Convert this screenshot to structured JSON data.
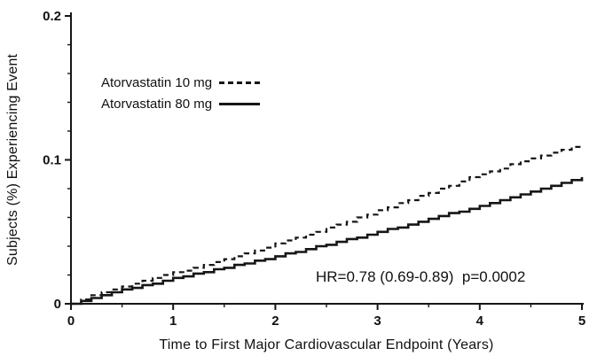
{
  "figure": {
    "background": "#ffffff",
    "ink_color": "#161616"
  },
  "chart_data": {
    "type": "line",
    "title": "",
    "xlabel": "Time to First Major Cardiovascular Endpoint (Years)",
    "ylabel": "Subjects (%) Experiencing Event",
    "xlim": [
      0,
      5
    ],
    "ylim": [
      0,
      0.2
    ],
    "grid": false,
    "legend_position": "upper-left-inside",
    "x_ticks": [
      0,
      1,
      2,
      3,
      4,
      5
    ],
    "x_tick_labels": [
      "0",
      "1",
      "2",
      "3",
      "4",
      "5"
    ],
    "x_minor_ticks": [
      0.5,
      1.5,
      2.5,
      3.5,
      4.5
    ],
    "y_ticks": [
      0,
      0.1,
      0.2
    ],
    "y_tick_labels": [
      "0",
      "0.1",
      "0.2"
    ],
    "y_minor_ticks": [
      0.02,
      0.04,
      0.06,
      0.08,
      0.12,
      0.14,
      0.16,
      0.18
    ],
    "annotation": "HR=0.78 (0.69-0.89)  p=0.0002",
    "legend": [
      {
        "label": "Atorvastatin 10 mg",
        "style": "dashed"
      },
      {
        "label": "Atorvastatin 80 mg",
        "style": "solid"
      }
    ],
    "x": [
      0,
      0.1,
      0.2,
      0.3,
      0.4,
      0.5,
      0.6,
      0.7,
      0.8,
      0.9,
      1,
      1.1,
      1.2,
      1.3,
      1.4,
      1.5,
      1.6,
      1.7,
      1.8,
      1.9,
      2,
      2.1,
      2.2,
      2.3,
      2.4,
      2.5,
      2.6,
      2.7,
      2.8,
      2.9,
      3,
      3.1,
      3.2,
      3.3,
      3.4,
      3.5,
      3.6,
      3.7,
      3.8,
      3.9,
      4,
      4.1,
      4.2,
      4.3,
      4.4,
      4.5,
      4.6,
      4.7,
      4.8,
      4.9,
      5
    ],
    "series": [
      {
        "name": "Atorvastatin 10 mg",
        "style": "dashed",
        "y": [
          0.0,
          0.003,
          0.006,
          0.008,
          0.01,
          0.012,
          0.014,
          0.016,
          0.018,
          0.02,
          0.022,
          0.023,
          0.025,
          0.027,
          0.029,
          0.031,
          0.033,
          0.035,
          0.037,
          0.039,
          0.042,
          0.044,
          0.046,
          0.048,
          0.05,
          0.053,
          0.055,
          0.057,
          0.06,
          0.062,
          0.065,
          0.067,
          0.07,
          0.072,
          0.075,
          0.077,
          0.08,
          0.082,
          0.085,
          0.088,
          0.09,
          0.092,
          0.094,
          0.097,
          0.099,
          0.101,
          0.103,
          0.105,
          0.107,
          0.109,
          0.11
        ]
      },
      {
        "name": "Atorvastatin 80 mg",
        "style": "solid",
        "y": [
          0.0,
          0.002,
          0.004,
          0.006,
          0.008,
          0.01,
          0.011,
          0.013,
          0.014,
          0.016,
          0.018,
          0.019,
          0.021,
          0.022,
          0.024,
          0.025,
          0.027,
          0.028,
          0.03,
          0.031,
          0.033,
          0.035,
          0.036,
          0.038,
          0.04,
          0.041,
          0.043,
          0.045,
          0.046,
          0.048,
          0.05,
          0.052,
          0.053,
          0.055,
          0.057,
          0.059,
          0.061,
          0.063,
          0.064,
          0.066,
          0.068,
          0.07,
          0.072,
          0.074,
          0.076,
          0.078,
          0.08,
          0.082,
          0.084,
          0.086,
          0.088
        ]
      }
    ]
  }
}
